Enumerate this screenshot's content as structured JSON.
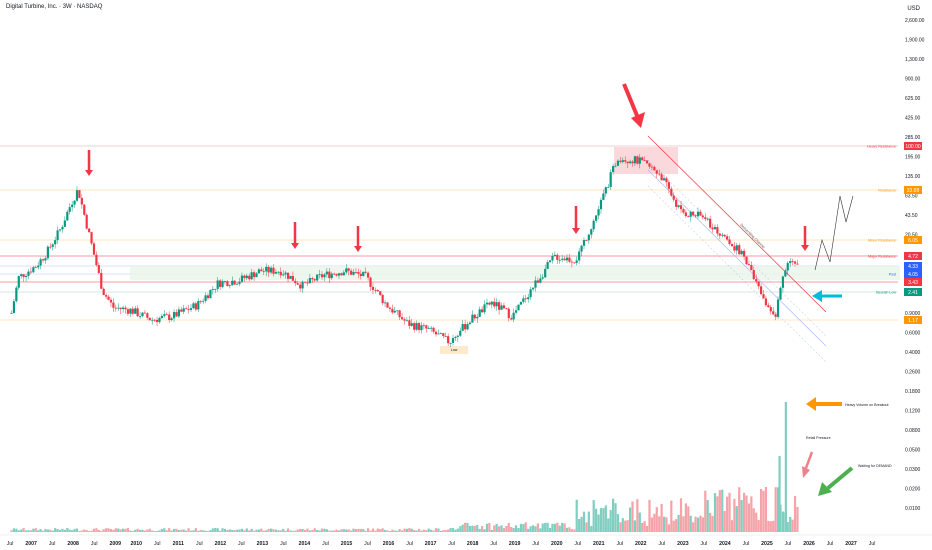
{
  "header": {
    "title": "Digital Turbine, Inc. · 3W · NASDAQ"
  },
  "price_axis": {
    "currency": "USD",
    "ticks": [
      "2,600.00",
      "1,900.00",
      "1,300.00",
      "900.00",
      "625.00",
      "425.00",
      "285.00",
      "195.00",
      "135.00",
      "63.50",
      "43.50",
      "20.50",
      "13.50",
      "1.90",
      "1.30",
      "0.9000",
      "0.6000",
      "0.4000",
      "0.2600",
      "0.1800",
      "0.1200",
      "0.0800",
      "0.0500",
      "0.0300",
      "0.0200",
      "0.0100"
    ]
  },
  "time_axis": {
    "labels": [
      "Jul",
      "2007",
      "Jul",
      "2008",
      "Jul",
      "2009",
      "2010",
      "Jul",
      "2011",
      "Jul",
      "2012",
      "Jul",
      "2013",
      "Jul",
      "2014",
      "Jul",
      "2015",
      "Jul",
      "2016",
      "Jul",
      "2017",
      "Jul",
      "2018",
      "Jul",
      "2019",
      "Jul",
      "2020",
      "Jul",
      "2021",
      "Jul",
      "2022",
      "Jul",
      "2023",
      "Jul",
      "2024",
      "Jul",
      "2025",
      "Jul",
      "2026",
      "Jul",
      "2027",
      "Jul"
    ]
  },
  "levels": [
    {
      "label": "Heavy Resistance",
      "value": "100.00",
      "color": "#f23645",
      "line": "#e4a0a4"
    },
    {
      "label": "Resistance",
      "value": "33.08",
      "color": "#ff9800",
      "line": "#ffcc80"
    },
    {
      "label": "Minor Resistance",
      "value": "6.05",
      "color": "#ff9800",
      "line": "#ffcc80"
    },
    {
      "label": "Major Resistance",
      "value": "4.72",
      "color": "#f23645",
      "line": "#f23645"
    },
    {
      "label": "",
      "value": "4.33",
      "color": "#2962ff",
      "line": "#b2c3f5"
    },
    {
      "label": "Post",
      "value": "4.05",
      "color": "#2962ff",
      "line": "#b2c3f5"
    },
    {
      "label": "",
      "value": "3.43",
      "color": "#f23645",
      "line": "#f23645"
    },
    {
      "label": "Bearish Low",
      "value": "2.41",
      "color": "#089981",
      "line": "#9fd8c5"
    },
    {
      "label": "",
      "value": "1.17",
      "color": "#ff9800",
      "line": "#ffcc80"
    }
  ],
  "annotations": {
    "low": "Low",
    "volume": [
      "Heavy Volume on Breakout",
      "Retail Pressure",
      "Waiting for DEMAND"
    ],
    "channel": "Descending Channel"
  },
  "colors": {
    "up": "#089981",
    "down": "#f23645",
    "vol_up": "#7fcfc0",
    "vol_down": "#f5a3a9"
  },
  "chart_data": {
    "type": "candlestick",
    "title": "Digital Turbine, Inc. · 3W · NASDAQ",
    "y_scale": "log",
    "ylim": [
      0.005,
      3000
    ],
    "x_range": [
      "2006-07",
      "2027-08"
    ],
    "approx_close_path": [
      {
        "date": "2006-08",
        "close": 1.3
      },
      {
        "date": "2006-10",
        "close": 3.2
      },
      {
        "date": "2007-03",
        "close": 4.3
      },
      {
        "date": "2007-06",
        "close": 6.0
      },
      {
        "date": "2007-10",
        "close": 11.0
      },
      {
        "date": "2008-01",
        "close": 21.0
      },
      {
        "date": "2008-03",
        "close": 30.0
      },
      {
        "date": "2008-07",
        "close": 7.0
      },
      {
        "date": "2008-10",
        "close": 2.3
      },
      {
        "date": "2009-01",
        "close": 1.5
      },
      {
        "date": "2009-06",
        "close": 1.4
      },
      {
        "date": "2009-12",
        "close": 1.1
      },
      {
        "date": "2010-06",
        "close": 1.2
      },
      {
        "date": "2011-01",
        "close": 1.6
      },
      {
        "date": "2011-07",
        "close": 2.8
      },
      {
        "date": "2012-01",
        "close": 3.0
      },
      {
        "date": "2012-07",
        "close": 3.8
      },
      {
        "date": "2013-01",
        "close": 3.8
      },
      {
        "date": "2013-07",
        "close": 2.6
      },
      {
        "date": "2014-01",
        "close": 3.4
      },
      {
        "date": "2014-07",
        "close": 3.8
      },
      {
        "date": "2015-01",
        "close": 3.3
      },
      {
        "date": "2015-07",
        "close": 1.6
      },
      {
        "date": "2016-01",
        "close": 1.0
      },
      {
        "date": "2016-07",
        "close": 0.85
      },
      {
        "date": "2017-01",
        "close": 0.62
      },
      {
        "date": "2017-07",
        "close": 1.1
      },
      {
        "date": "2018-01",
        "close": 1.7
      },
      {
        "date": "2018-07",
        "close": 1.2
      },
      {
        "date": "2019-01",
        "close": 2.6
      },
      {
        "date": "2019-07",
        "close": 5.5
      },
      {
        "date": "2020-01",
        "close": 5.0
      },
      {
        "date": "2020-07",
        "close": 16.0
      },
      {
        "date": "2021-01",
        "close": 68.0
      },
      {
        "date": "2021-07",
        "close": 62.0
      },
      {
        "date": "2022-01",
        "close": 45.0
      },
      {
        "date": "2022-07",
        "close": 17.0
      },
      {
        "date": "2023-01",
        "close": 15.0
      },
      {
        "date": "2023-07",
        "close": 9.5
      },
      {
        "date": "2024-01",
        "close": 5.5
      },
      {
        "date": "2024-07",
        "close": 1.7
      },
      {
        "date": "2024-10",
        "close": 1.2
      },
      {
        "date": "2025-01",
        "close": 4.5
      },
      {
        "date": "2025-05",
        "close": 4.3
      }
    ],
    "projection": [
      {
        "date": "2025-07",
        "close": 5.0
      },
      {
        "date": "2025-11",
        "close": 6.5
      },
      {
        "date": "2026-02",
        "close": 35.0
      }
    ]
  }
}
